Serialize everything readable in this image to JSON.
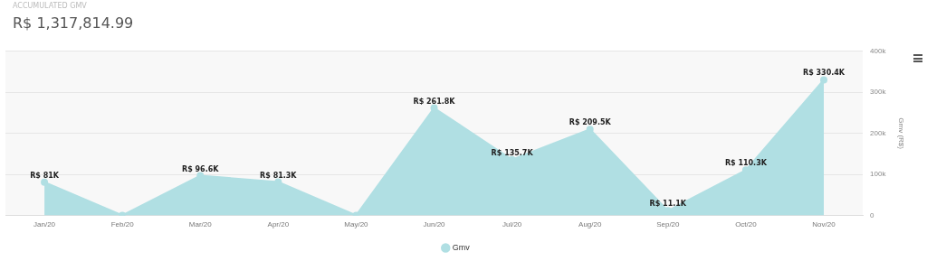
{
  "chart_data": {
    "type": "area",
    "title": "ACCUMULATED GMV",
    "subtitle": "R$ 1,317,814.99",
    "ylabel": "Gmv (R$)",
    "categories": [
      "Jan/20",
      "Feb/20",
      "Mar/20",
      "Apr/20",
      "May/20",
      "Jun/20",
      "Jul/20",
      "Aug/20",
      "Sep/20",
      "Oct/20",
      "Nov/20"
    ],
    "series": [
      {
        "name": "Gmv",
        "color": "#b0dfe3",
        "values": [
          81000,
          0,
          96600,
          81300,
          0,
          261800,
          135700,
          209500,
          11100,
          110300,
          330400
        ],
        "value_labels": [
          "R$ 81K",
          null,
          "R$ 96.6K",
          "R$ 81.3K",
          null,
          "R$ 261.8K",
          "R$ 135.7K",
          "R$ 209.5K",
          "R$ 11.1K",
          "R$ 110.3K",
          "R$ 330.4K"
        ]
      }
    ],
    "ylim": [
      0,
      400000
    ],
    "yticks": [
      {
        "value": 0,
        "label": "0"
      },
      {
        "value": 100000,
        "label": "100k"
      },
      {
        "value": 200000,
        "label": "200k"
      },
      {
        "value": 300000,
        "label": "300k"
      },
      {
        "value": 400000,
        "label": "400k"
      }
    ],
    "grid": "y",
    "legend": "bottom",
    "marker": "circle"
  }
}
